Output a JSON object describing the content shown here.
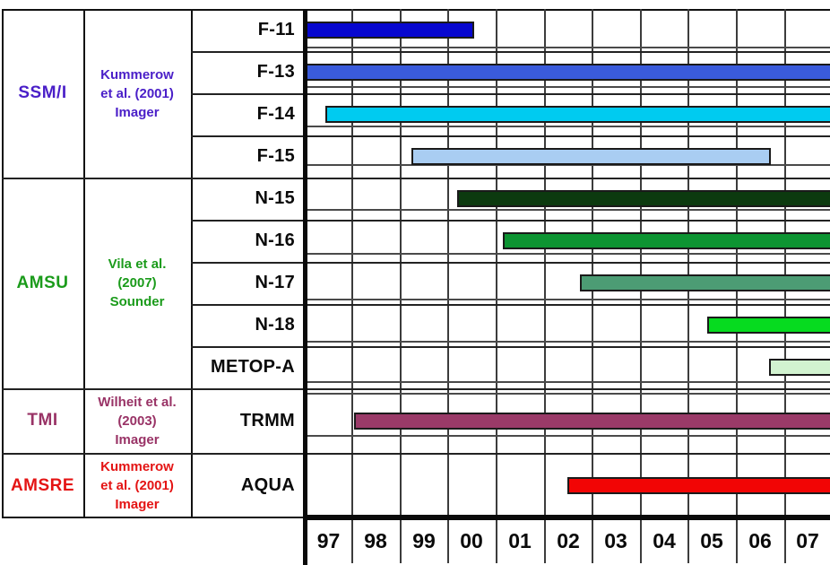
{
  "chart_data": {
    "type": "gantt",
    "x_axis": {
      "tick_labels": [
        "97",
        "98",
        "99",
        "00",
        "01",
        "02",
        "03",
        "04",
        "05",
        "06",
        "07"
      ],
      "range_years": [
        1997.0,
        2007.96
      ],
      "grid": true
    },
    "groups": [
      {
        "instrument": "SSM/I",
        "reference_lines": [
          "Kummerow",
          "et al. (2001)",
          "Imager"
        ],
        "text_color": "#4A1FC8",
        "rows": [
          {
            "satellite": "F-11",
            "start_year": 1997.0,
            "end_year": 2000.55,
            "runs_off_right_edge": false,
            "bar_color": "#0707CF"
          },
          {
            "satellite": "F-13",
            "start_year": 1997.0,
            "end_year": 2007.96,
            "runs_off_right_edge": true,
            "bar_color": "#3A5BDB"
          },
          {
            "satellite": "F-14",
            "start_year": 1997.45,
            "end_year": 2007.96,
            "runs_off_right_edge": true,
            "bar_color": "#00CBF0"
          },
          {
            "satellite": "F-15",
            "start_year": 1999.25,
            "end_year": 2006.73,
            "runs_off_right_edge": false,
            "bar_color": "#A9CDF2"
          }
        ]
      },
      {
        "instrument": "AMSU",
        "reference_lines": [
          "Vila et al.",
          "(2007)",
          "Sounder"
        ],
        "text_color": "#1B9B1B",
        "rows": [
          {
            "satellite": "N-15",
            "start_year": 2000.2,
            "end_year": 2007.96,
            "runs_off_right_edge": true,
            "bar_color": "#0C3A0F"
          },
          {
            "satellite": "N-16",
            "start_year": 2001.15,
            "end_year": 2007.96,
            "runs_off_right_edge": true,
            "bar_color": "#0D9432"
          },
          {
            "satellite": "N-17",
            "start_year": 2002.75,
            "end_year": 2007.96,
            "runs_off_right_edge": true,
            "bar_color": "#4C9C74"
          },
          {
            "satellite": "N-18",
            "start_year": 2005.4,
            "end_year": 2007.96,
            "runs_off_right_edge": true,
            "bar_color": "#06DB1F"
          },
          {
            "satellite": "METOP-A",
            "start_year": 2006.7,
            "end_year": 2007.96,
            "runs_off_right_edge": true,
            "bar_color": "#D2F3D0"
          }
        ]
      },
      {
        "instrument": "TMI",
        "reference_lines": [
          "Wilheit et al.",
          "(2003)",
          "Imager"
        ],
        "text_color": "#993366",
        "rows": [
          {
            "satellite": "TRMM",
            "start_year": 1998.05,
            "end_year": 2007.96,
            "runs_off_right_edge": true,
            "bar_color": "#9A3A68"
          }
        ]
      },
      {
        "instrument": "AMSRE",
        "reference_lines": [
          "Kummerow",
          "et al. (2001)",
          "Imager"
        ],
        "text_color": "#E41414",
        "rows": [
          {
            "satellite": "AQUA",
            "start_year": 2002.5,
            "end_year": 2007.96,
            "runs_off_right_edge": true,
            "bar_color": "#F20505"
          }
        ]
      }
    ]
  }
}
